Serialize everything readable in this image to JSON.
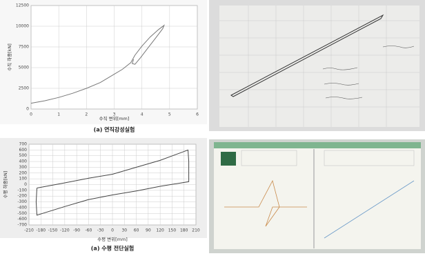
{
  "chart_data": [
    {
      "type": "line",
      "caption": "(a) 연직강성실험",
      "xlabel": "수직 변위[mm]",
      "ylabel": "수직 하중[kN]",
      "xlim": [
        0,
        6
      ],
      "xticks": [
        0,
        1,
        2,
        3,
        4,
        5,
        6
      ],
      "ylim": [
        0,
        12500
      ],
      "yticks": [
        0,
        2500,
        5000,
        7500,
        10000,
        12500
      ],
      "grid": true,
      "series": [
        {
          "color": "#777777",
          "x": [
            0,
            0.5,
            1,
            1.5,
            2,
            2.5,
            3,
            3.3,
            3.6,
            3.75,
            4.0,
            4.3,
            4.6,
            4.8,
            4.75,
            4.5,
            4.2,
            3.95,
            3.75,
            3.65,
            3.7
          ],
          "values": [
            700,
            1000,
            1400,
            1900,
            2500,
            3200,
            4200,
            4800,
            5600,
            6500,
            7600,
            8700,
            9600,
            10100,
            9700,
            8600,
            7300,
            6200,
            5400,
            5500,
            6000
          ]
        }
      ]
    },
    {
      "type": "line",
      "caption": "(a) 수평 전단실험",
      "xlabel": "수평 변위[mm]",
      "ylabel": "수평 하중[kN]",
      "xlim": [
        -210,
        210
      ],
      "xticks": [
        -210,
        -180,
        -150,
        -120,
        -90,
        -60,
        -30,
        0,
        30,
        60,
        90,
        120,
        150,
        180,
        210
      ],
      "ylim": [
        -700,
        700
      ],
      "yticks": [
        700,
        600,
        500,
        400,
        300,
        200,
        100,
        0,
        -100,
        -200,
        -300,
        -400,
        -500,
        -600,
        -700
      ],
      "grid": true,
      "series": [
        {
          "color": "#444444",
          "x": [
            -190,
            -120,
            -60,
            0,
            60,
            120,
            190,
            192,
            192,
            120,
            60,
            0,
            -60,
            -120,
            -190,
            -192,
            -190
          ],
          "values": [
            -60,
            30,
            110,
            180,
            300,
            420,
            600,
            400,
            50,
            -30,
            -110,
            -180,
            -260,
            -380,
            -530,
            -300,
            -60
          ]
        }
      ]
    }
  ]
}
